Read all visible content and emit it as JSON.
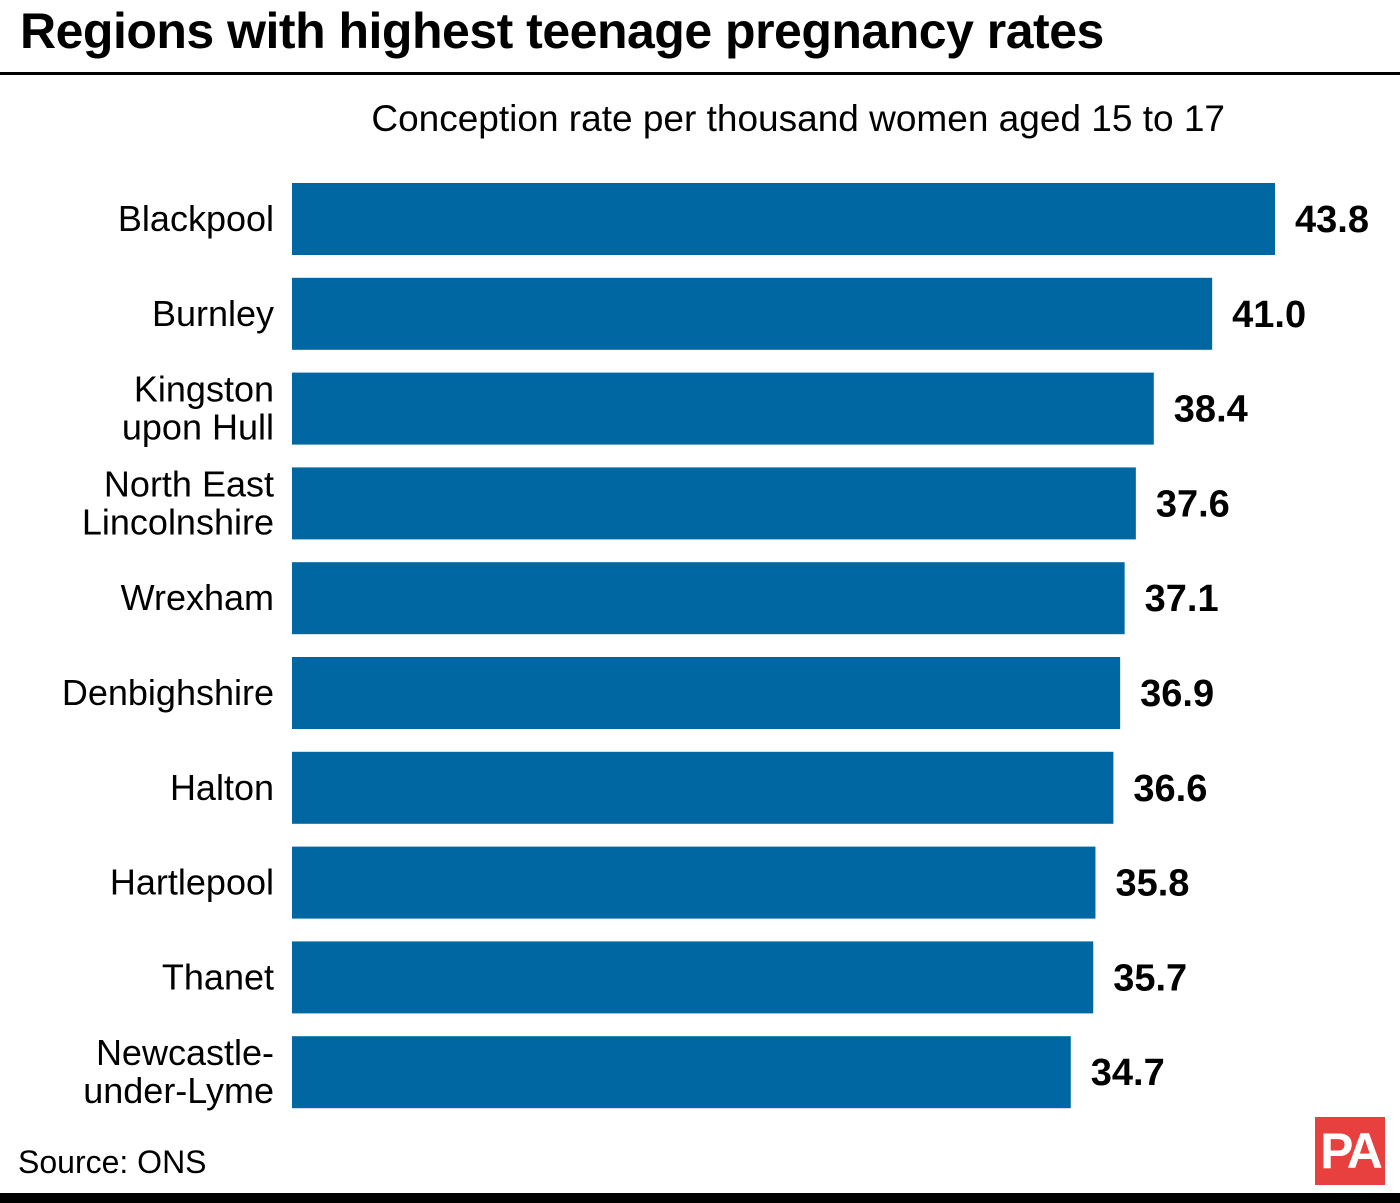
{
  "header": {
    "title": "Regions with highest teenage pregnancy rates",
    "subtitle": "Conception rate per thousand women aged 15 to 17"
  },
  "footer": {
    "source": "Source: ONS",
    "logo_text": "PA"
  },
  "colors": {
    "bar": "#0067a3",
    "logo": "#e8403e"
  },
  "chart_data": {
    "type": "bar",
    "orientation": "horizontal",
    "title": "Regions with highest teenage pregnancy rates",
    "subtitle": "Conception rate per thousand women aged 15 to 17",
    "xlabel": "Conception rate per thousand women aged 15 to 17",
    "ylabel": "",
    "xlim": [
      0,
      43.8
    ],
    "grid": false,
    "categories": [
      [
        "Blackpool"
      ],
      [
        "Burnley"
      ],
      [
        "Kingston",
        "upon Hull"
      ],
      [
        "North East",
        "Lincolnshire"
      ],
      [
        "Wrexham"
      ],
      [
        "Denbighshire"
      ],
      [
        "Halton"
      ],
      [
        "Hartlepool"
      ],
      [
        "Thanet"
      ],
      [
        "Newcastle-",
        "under-Lyme"
      ]
    ],
    "values": [
      43.8,
      41.0,
      38.4,
      37.6,
      37.1,
      36.9,
      36.6,
      35.8,
      35.7,
      34.7
    ],
    "value_labels": [
      "43.8",
      "41.0",
      "38.4",
      "37.6",
      "37.1",
      "36.9",
      "36.6",
      "35.8",
      "35.7",
      "34.7"
    ]
  }
}
